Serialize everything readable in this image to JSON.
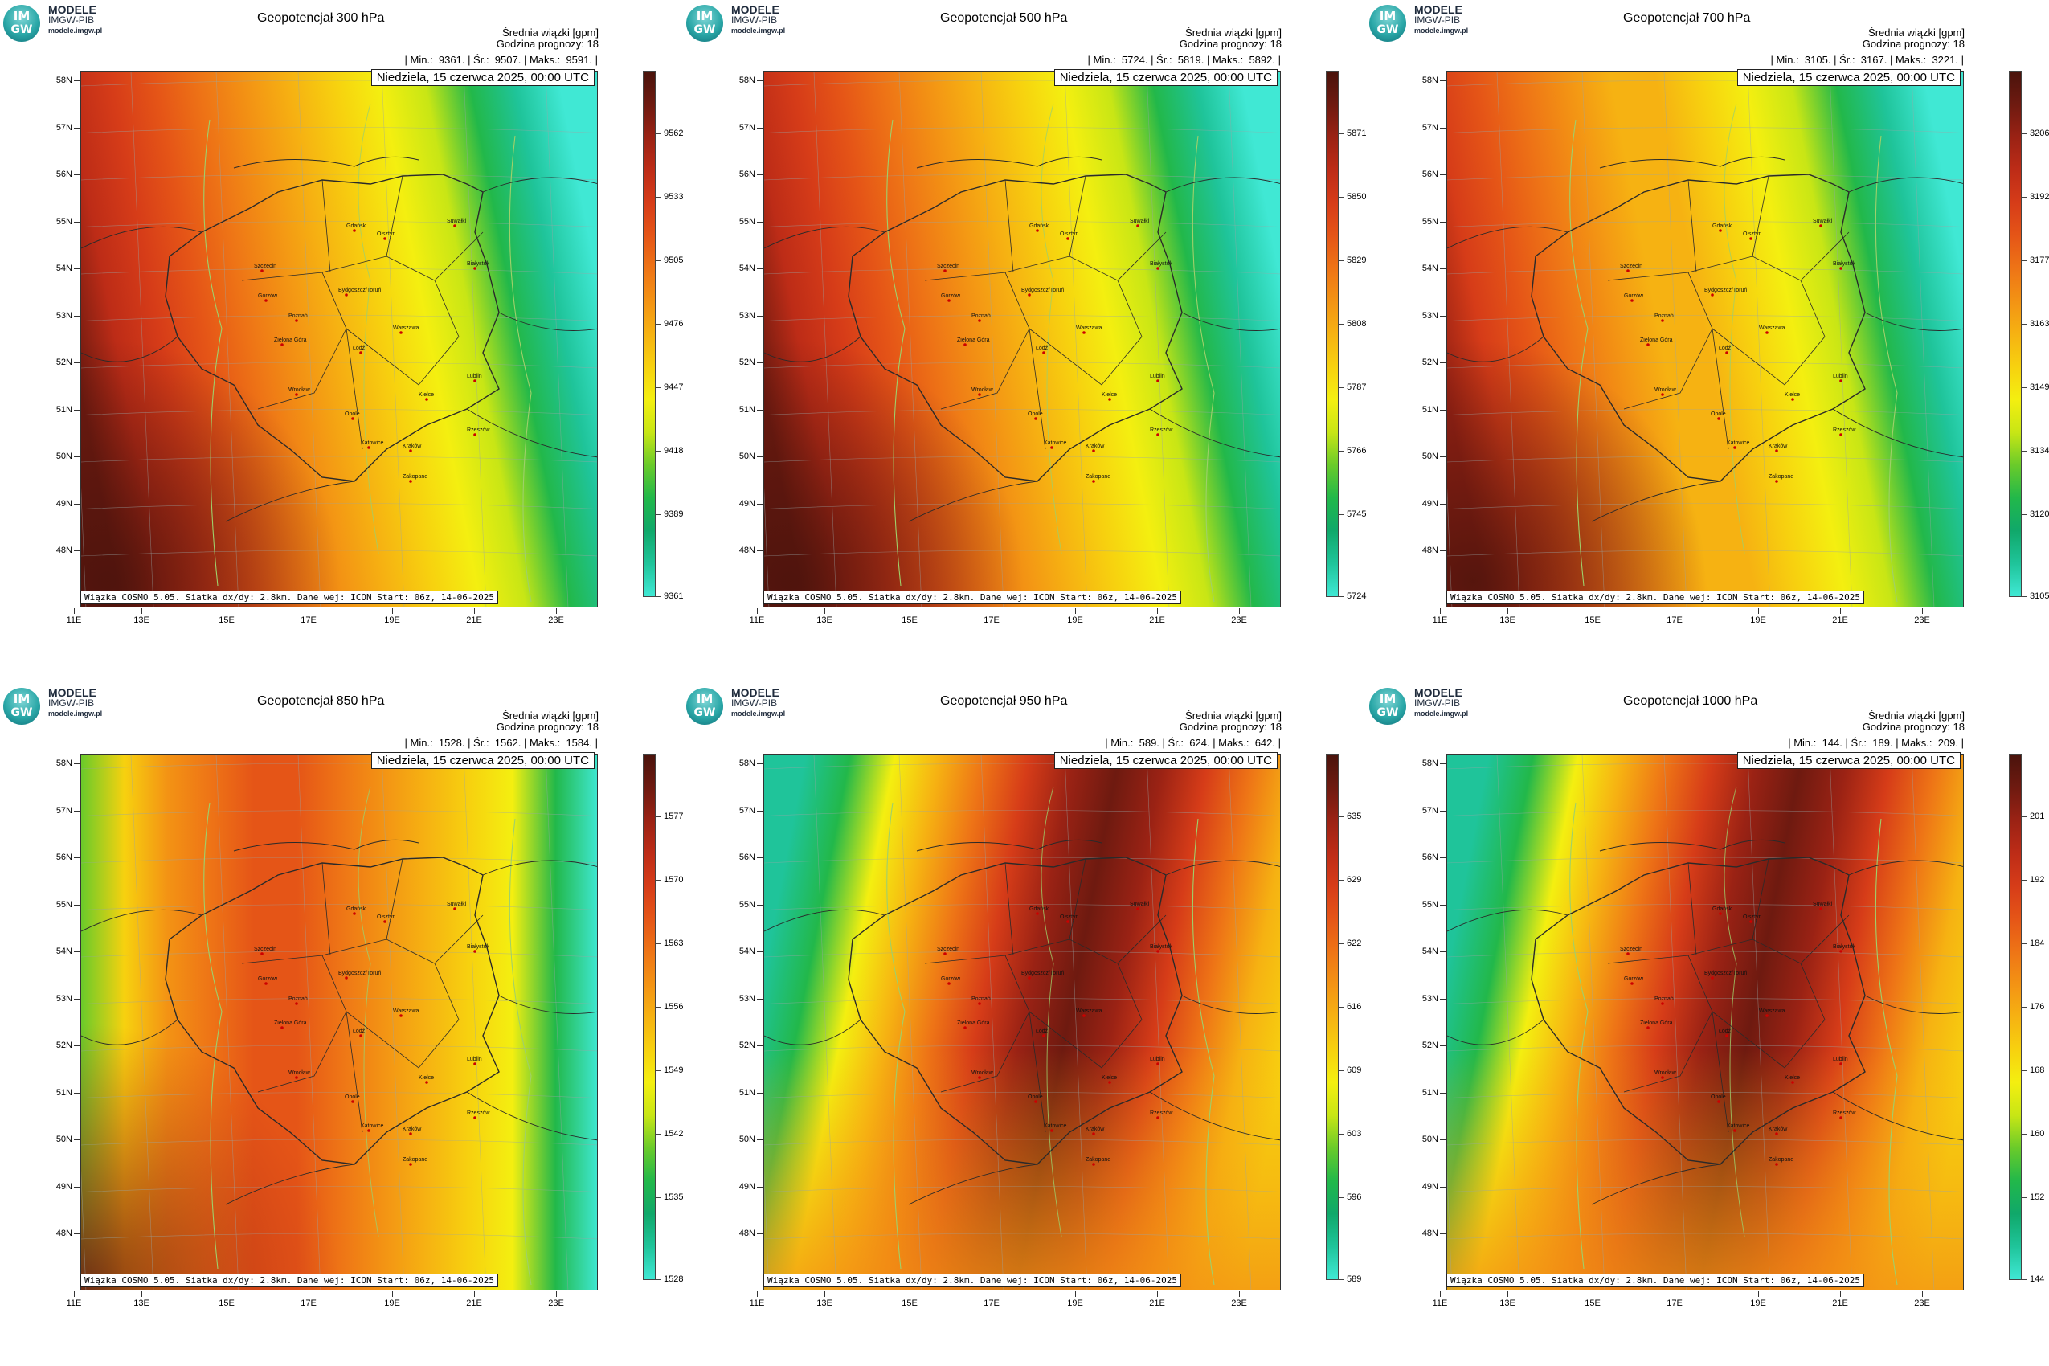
{
  "logo": {
    "badge_top": "IM",
    "badge_bottom": "GW",
    "title": "MODELE",
    "subtitle": "IMGW-PIB",
    "url": "modele.imgw.pl"
  },
  "common": {
    "info_line1": "Średnia wiązki [gpm]",
    "info_line2": "Godzina prognozy: 18",
    "date": "Niedziela, 15 czerwca 2025, 00:00 UTC",
    "footer": "Wiązka COSMO 5.05. Siatka dx/dy: 2.8km. Dane wej: ICON Start: 06z, 14-06-2025",
    "lat_labels": [
      "58N",
      "57N",
      "56N",
      "55N",
      "54N",
      "53N",
      "52N",
      "51N",
      "50N",
      "49N",
      "48N"
    ],
    "lon_labels": [
      "11E",
      "13E",
      "15E",
      "17E",
      "19E",
      "21E",
      "23E"
    ],
    "cities": [
      "Gdańsk",
      "Olsztyn",
      "Suwałki",
      "Szczecin",
      "Białystok",
      "Bydgoszcz/Toruń",
      "Gorzów",
      "Poznań",
      "Warszawa",
      "Zielona Góra",
      "Łódź",
      "Lublin",
      "Wrocław",
      "Kielce",
      "Opole",
      "Rzeszów",
      "Katowice",
      "Kraków",
      "Zakopane"
    ]
  },
  "colors": {
    "scale": [
      "#40e8d4",
      "#1fc49a",
      "#10a86a",
      "#22b84a",
      "#6acb2a",
      "#c8e615",
      "#f4ef10",
      "#f7d10f",
      "#f6b212",
      "#f39314",
      "#ee7416",
      "#e55517",
      "#d63c18",
      "#bd2c17",
      "#9a2214",
      "#6e1a10",
      "#4a130c"
    ],
    "map_border": "#2a2a2a",
    "contour": "#9fd06a",
    "grid": "#9aa6a6"
  },
  "panels": [
    {
      "title": "Geopotencjał 300 hPa",
      "min": "9361.",
      "avg": "9507.",
      "max": "9591.",
      "colorbar_ticks": [
        "9562",
        "9533",
        "9505",
        "9476",
        "9447",
        "9418",
        "9389",
        "9361"
      ],
      "pattern": "west-high"
    },
    {
      "title": "Geopotencjał 500 hPa",
      "min": "5724.",
      "avg": "5819.",
      "max": "5892.",
      "colorbar_ticks": [
        "5871",
        "5850",
        "5829",
        "5808",
        "5787",
        "5766",
        "5745",
        "5724"
      ],
      "pattern": "west-high"
    },
    {
      "title": "Geopotencjał 700 hPa",
      "min": "3105.",
      "avg": "3167.",
      "max": "3221.",
      "colorbar_ticks": [
        "3206",
        "3192",
        "3177",
        "3163",
        "3149",
        "3134",
        "3120",
        "3105"
      ],
      "pattern": "west-high-orange"
    },
    {
      "title": "Geopotencjał 850 hPa",
      "min": "1528.",
      "avg": "1562.",
      "max": "1584.",
      "colorbar_ticks": [
        "1577",
        "1570",
        "1563",
        "1556",
        "1549",
        "1542",
        "1535",
        "1528"
      ],
      "pattern": "center-high"
    },
    {
      "title": "Geopotencjał 950 hPa",
      "min": "589.",
      "avg": "624.",
      "max": "642.",
      "colorbar_ticks": [
        "635",
        "629",
        "622",
        "616",
        "609",
        "603",
        "596",
        "589"
      ],
      "pattern": "east-high"
    },
    {
      "title": "Geopotencjał 1000 hPa",
      "min": "144.",
      "avg": "189.",
      "max": "209.",
      "colorbar_ticks": [
        "201",
        "192",
        "184",
        "176",
        "168",
        "160",
        "152",
        "144"
      ],
      "pattern": "east-high"
    }
  ]
}
